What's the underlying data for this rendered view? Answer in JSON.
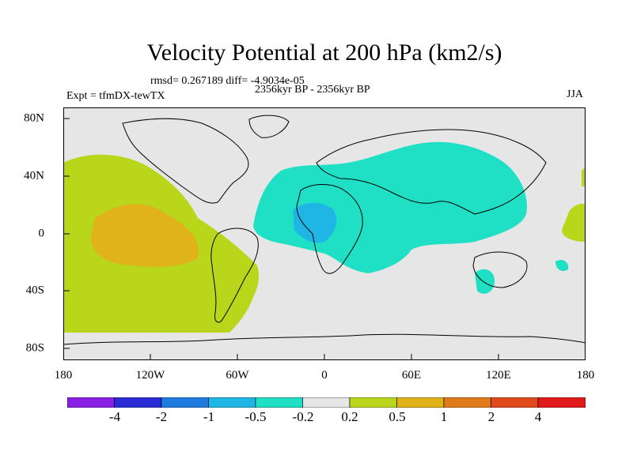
{
  "title": "Velocity Potential at 200 hPa (km2/s)",
  "stats": "rmsd= 0.267189 diff= -4.9034e-05",
  "experiment": "Expt = tfmDX-tewTX",
  "period": "2356kyr BP - 2356kyr BP",
  "season": "JJA",
  "x_ticks": [
    "180",
    "120W",
    "60W",
    "0",
    "60E",
    "120E",
    "180"
  ],
  "y_ticks": [
    "80N",
    "40N",
    "0",
    "40S",
    "80S"
  ],
  "colorbar": {
    "labels": [
      "-4",
      "-2",
      "-1",
      "-0.5",
      "-0.2",
      "0.2",
      "0.5",
      "1",
      "2",
      "4"
    ],
    "colors": [
      "#8a1fe6",
      "#2b2bd6",
      "#1f7be0",
      "#1fb6e6",
      "#1fe0c4",
      "#e6e6e6",
      "#b9d61a",
      "#e0b31a",
      "#e07a1a",
      "#e04a1a",
      "#e01a1a"
    ]
  },
  "colors": {
    "ocean": "#e6e6e6",
    "neg_light": "#1fe0c4",
    "neg_mid": "#1fb6e6",
    "pos_light": "#b9d61a",
    "pos_mid": "#e0b31a"
  }
}
